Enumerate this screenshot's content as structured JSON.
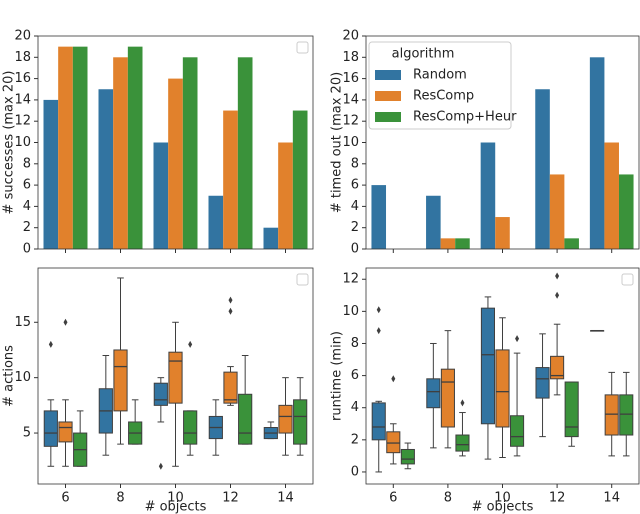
{
  "chart_data": [
    {
      "type": "bar",
      "ylabel": "# successes (max 20)",
      "categories": [
        null,
        null,
        null,
        null,
        null
      ],
      "ylim": [
        0,
        20
      ],
      "yticks": [
        0,
        2,
        4,
        6,
        8,
        10,
        12,
        14,
        16,
        18,
        20
      ],
      "series": [
        {
          "color": "#3274a1",
          "values": [
            14,
            15,
            10,
            5,
            2
          ]
        },
        {
          "color": "#e1812c",
          "values": [
            19,
            18,
            16,
            13,
            10
          ]
        },
        {
          "color": "#3a923a",
          "values": [
            19,
            19,
            18,
            18,
            13
          ]
        }
      ]
    },
    {
      "type": "bar",
      "ylabel": "# timed out (max 20)",
      "categories": [
        null,
        null,
        null,
        null,
        null
      ],
      "ylim": [
        0,
        20
      ],
      "yticks": [
        0,
        2,
        4,
        6,
        8,
        10,
        12,
        14,
        16,
        18,
        20
      ],
      "legend": "upper left",
      "legend_title": "algorithm",
      "series": [
        {
          "name": "Random",
          "color": "#3274a1",
          "values": [
            6,
            5,
            10,
            15,
            18
          ]
        },
        {
          "name": "ResComp",
          "color": "#e1812c",
          "values": [
            0,
            1,
            3,
            7,
            10
          ]
        },
        {
          "name": "ResComp+Heur",
          "color": "#3a923a",
          "values": [
            0,
            1,
            0,
            1,
            7
          ]
        }
      ]
    },
    {
      "type": "box",
      "ylabel": "# actions",
      "xlabel": "# objects",
      "categories": [
        6,
        8,
        10,
        12,
        14
      ],
      "ylim": [
        0.4,
        19.9
      ],
      "yticks": [
        5,
        10,
        15
      ],
      "series": [
        {
          "color": "#3274a1",
          "boxes": [
            {
              "whislo": 2,
              "q1": 3.8,
              "med": 5,
              "q3": 7,
              "whishi": 8,
              "fliers": [
                13
              ]
            },
            {
              "whislo": 3,
              "q1": 5,
              "med": 7,
              "q3": 9,
              "whishi": 12,
              "fliers": []
            },
            {
              "whislo": 6,
              "q1": 7.5,
              "med": 8,
              "q3": 9.5,
              "whishi": 10,
              "fliers": [
                2
              ]
            },
            {
              "whislo": 3,
              "q1": 4.5,
              "med": 5.5,
              "q3": 6.5,
              "whishi": 8,
              "fliers": []
            },
            {
              "whislo": 4.5,
              "q1": 4.5,
              "med": 5,
              "q3": 5.5,
              "whishi": 6,
              "fliers": []
            }
          ]
        },
        {
          "color": "#e1812c",
          "boxes": [
            {
              "whislo": 2,
              "q1": 4.2,
              "med": 5.5,
              "q3": 6,
              "whishi": 8,
              "fliers": [
                15
              ]
            },
            {
              "whislo": 4,
              "q1": 7,
              "med": 11,
              "q3": 12.5,
              "whishi": 19,
              "fliers": []
            },
            {
              "whislo": 2,
              "q1": 7.7,
              "med": 11.5,
              "q3": 12.3,
              "whishi": 15,
              "fliers": []
            },
            {
              "whislo": 7.5,
              "q1": 7.7,
              "med": 8,
              "q3": 10.5,
              "whishi": 11,
              "fliers": [
                17,
                16
              ]
            },
            {
              "whislo": 3,
              "q1": 5,
              "med": 6.5,
              "q3": 7.5,
              "whishi": 10,
              "fliers": []
            }
          ]
        },
        {
          "color": "#3a923a",
          "boxes": [
            {
              "whislo": 2,
              "q1": 2,
              "med": 3.5,
              "q3": 5,
              "whishi": 7,
              "fliers": []
            },
            {
              "whislo": 4,
              "q1": 4,
              "med": 5,
              "q3": 6,
              "whishi": 8,
              "fliers": []
            },
            {
              "whislo": 3,
              "q1": 4,
              "med": 5,
              "q3": 7,
              "whishi": 7,
              "fliers": [
                13
              ]
            },
            {
              "whislo": 4,
              "q1": 4,
              "med": 5,
              "q3": 8.5,
              "whishi": 12,
              "fliers": []
            },
            {
              "whislo": 3,
              "q1": 4,
              "med": 6.5,
              "q3": 8,
              "whishi": 10,
              "fliers": []
            }
          ]
        }
      ]
    },
    {
      "type": "box",
      "ylabel": "runtime (min)",
      "xlabel": "# objects",
      "categories": [
        6,
        8,
        10,
        12,
        14
      ],
      "ylim": [
        -0.75,
        12.7
      ],
      "yticks": [
        0,
        2,
        4,
        6,
        8,
        10,
        12
      ],
      "series": [
        {
          "color": "#3274a1",
          "boxes": [
            {
              "whislo": 0,
              "q1": 2,
              "med": 2.8,
              "q3": 4.3,
              "whishi": 4.4,
              "fliers": [
                8.8,
                10.1
              ]
            },
            {
              "whislo": 1.5,
              "q1": 4,
              "med": 5,
              "q3": 5.8,
              "whishi": 8,
              "fliers": []
            },
            {
              "whislo": 0.8,
              "q1": 3,
              "med": 7.3,
              "q3": 10.2,
              "whishi": 10.9,
              "fliers": []
            },
            {
              "whislo": 2.2,
              "q1": 4.6,
              "med": 5.8,
              "q3": 6.5,
              "whishi": 8.6,
              "fliers": []
            },
            {
              "whislo": 8.8,
              "q1": 8.8,
              "med": 8.8,
              "q3": 8.8,
              "whishi": 8.8,
              "fliers": []
            }
          ]
        },
        {
          "color": "#e1812c",
          "boxes": [
            {
              "whislo": 0.5,
              "q1": 1.2,
              "med": 1.8,
              "q3": 2.5,
              "whishi": 3,
              "fliers": [
                5.8
              ]
            },
            {
              "whislo": 1.5,
              "q1": 2.8,
              "med": 5.6,
              "q3": 6.4,
              "whishi": 8.8,
              "fliers": []
            },
            {
              "whislo": 0.9,
              "q1": 2.8,
              "med": 5,
              "q3": 7.6,
              "whishi": 9.6,
              "fliers": []
            },
            {
              "whislo": 4.8,
              "q1": 5.8,
              "med": 6,
              "q3": 7.2,
              "whishi": 9.2,
              "fliers": [
                11,
                12.2
              ]
            },
            {
              "whislo": 1,
              "q1": 2.3,
              "med": 3.6,
              "q3": 4.8,
              "whishi": 6.2,
              "fliers": []
            }
          ]
        },
        {
          "color": "#3a923a",
          "boxes": [
            {
              "whislo": 0.2,
              "q1": 0.5,
              "med": 0.8,
              "q3": 1.4,
              "whishi": 1.8,
              "fliers": []
            },
            {
              "whislo": 1,
              "q1": 1.3,
              "med": 1.7,
              "q3": 2.3,
              "whishi": 3.7,
              "fliers": [
                4.3
              ]
            },
            {
              "whislo": 1,
              "q1": 1.6,
              "med": 2.2,
              "q3": 3.5,
              "whishi": 7.4,
              "fliers": [
                8.3
              ]
            },
            {
              "whislo": 1.6,
              "q1": 2.2,
              "med": 2.8,
              "q3": 5.6,
              "whishi": 5.6,
              "fliers": []
            },
            {
              "whislo": 1,
              "q1": 2.3,
              "med": 3.6,
              "q3": 4.8,
              "whishi": 6.2,
              "fliers": []
            }
          ]
        }
      ]
    }
  ]
}
